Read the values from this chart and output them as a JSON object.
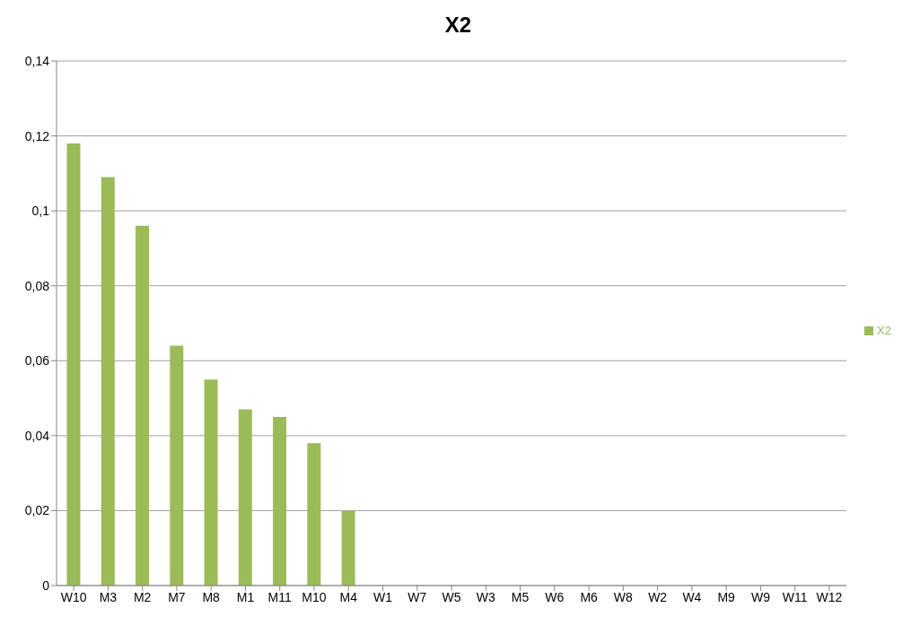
{
  "chart_data": {
    "type": "bar",
    "title": "X2",
    "categories": [
      "W10",
      "M3",
      "M2",
      "M7",
      "M8",
      "M1",
      "M11",
      "M10",
      "M4",
      "W1",
      "W7",
      "W5",
      "W3",
      "M5",
      "W6",
      "M6",
      "W8",
      "W2",
      "W4",
      "M9",
      "W9",
      "W11",
      "W12"
    ],
    "series": [
      {
        "name": "X2",
        "color": "#9bbb59",
        "values": [
          0.118,
          0.109,
          0.096,
          0.064,
          0.055,
          0.047,
          0.045,
          0.038,
          0.02,
          0,
          0,
          0,
          0,
          0,
          0,
          0,
          0,
          0,
          0,
          0,
          0,
          0,
          0
        ]
      }
    ],
    "ylim": [
      0,
      0.14
    ],
    "yticks": [
      0,
      {
        "value": 0.02,
        "label": "0,02"
      },
      {
        "value": 0.04,
        "label": "0,04"
      },
      {
        "value": 0.06,
        "label": "0,06"
      },
      {
        "value": 0.08,
        "label": "0,08"
      },
      {
        "value": 0.1,
        "label": "0,1"
      },
      {
        "value": 0.12,
        "label": "0,12"
      },
      {
        "value": 0.14,
        "label": "0,14"
      }
    ],
    "grid": "y",
    "legend": "right"
  }
}
